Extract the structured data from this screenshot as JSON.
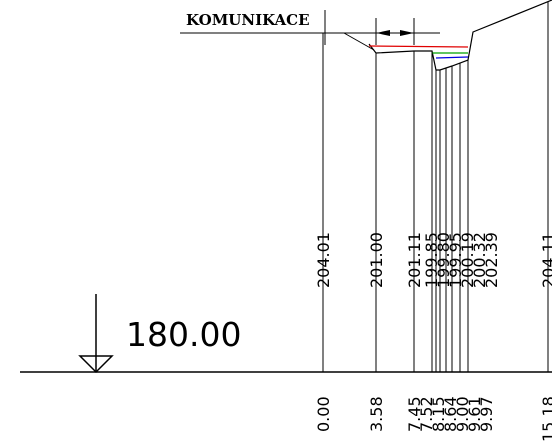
{
  "title": "KOMUNIKACE",
  "datum": {
    "value": "180.00"
  },
  "stations": [
    {
      "chainage": "0.00",
      "elevation": "204.01"
    },
    {
      "chainage": "3.58",
      "elevation": "201.00"
    },
    {
      "chainage": "7.45",
      "elevation": "201.11"
    },
    {
      "chainage": "7.52",
      "elevation": "199.85"
    },
    {
      "chainage": "8.15",
      "elevation": "199.80"
    },
    {
      "chainage": "8.64",
      "elevation": "199.95"
    },
    {
      "chainage": "9.00",
      "elevation": "200.19"
    },
    {
      "chainage": "9.61",
      "elevation": "200.32"
    },
    {
      "chainage": "9.97",
      "elevation": "202.39"
    },
    {
      "chainage": "15.18",
      "elevation": "204.11"
    }
  ],
  "layer_colors": {
    "red": "#e00000",
    "green": "#00a000",
    "blue": "#0000e0",
    "line": "#000000"
  }
}
